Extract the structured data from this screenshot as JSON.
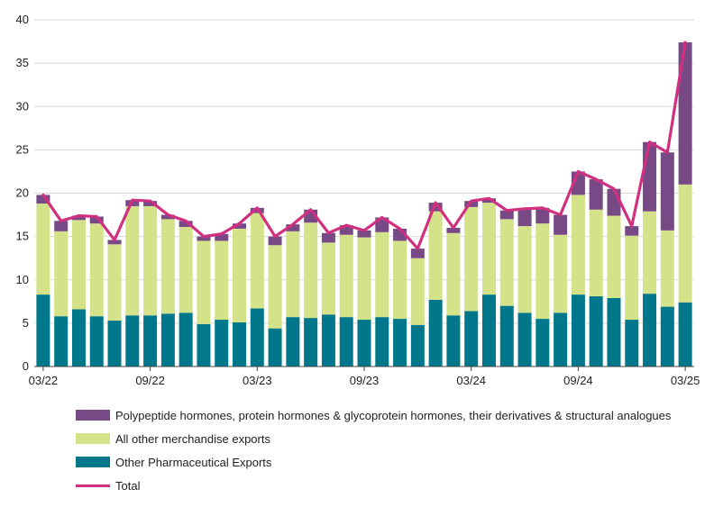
{
  "chart_data": {
    "type": "bar",
    "stacked": true,
    "title": "",
    "xlabel": "",
    "ylabel": "",
    "ylim": [
      0,
      40
    ],
    "yticks": [
      0,
      5,
      10,
      15,
      20,
      25,
      30,
      35,
      40
    ],
    "x_tick_labels": [
      {
        "index": 0,
        "label": "03/22"
      },
      {
        "index": 6,
        "label": "09/22"
      },
      {
        "index": 12,
        "label": "03/23"
      },
      {
        "index": 18,
        "label": "09/23"
      },
      {
        "index": 24,
        "label": "03/24"
      },
      {
        "index": 30,
        "label": "09/24"
      },
      {
        "index": 36,
        "label": "03/25"
      }
    ],
    "categories": [
      "03/22",
      "04/22",
      "05/22",
      "06/22",
      "07/22",
      "08/22",
      "09/22",
      "10/22",
      "11/22",
      "12/22",
      "01/23",
      "02/23",
      "03/23",
      "04/23",
      "05/23",
      "06/23",
      "07/23",
      "08/23",
      "09/23",
      "10/23",
      "11/23",
      "12/23",
      "01/24",
      "02/24",
      "03/24",
      "04/24",
      "05/24",
      "06/24",
      "07/24",
      "08/24",
      "09/24",
      "10/24",
      "11/24",
      "12/24",
      "01/25",
      "02/25",
      "03/25"
    ],
    "series": [
      {
        "name": "Other Pharmaceutical Exports",
        "color": "#00778B",
        "values": [
          8.3,
          5.8,
          6.6,
          5.8,
          5.3,
          5.9,
          5.9,
          6.1,
          6.2,
          4.9,
          5.4,
          5.1,
          6.7,
          4.4,
          5.7,
          5.6,
          6.0,
          5.7,
          5.4,
          5.7,
          5.5,
          4.8,
          7.7,
          5.9,
          6.4,
          8.3,
          7.0,
          6.2,
          5.5,
          6.2,
          8.3,
          8.1,
          7.9,
          5.4,
          8.4,
          6.9,
          7.4
        ]
      },
      {
        "name": "All other merchandise exports",
        "color": "#D4E28A",
        "values": [
          10.5,
          9.8,
          10.3,
          10.7,
          8.8,
          12.6,
          12.6,
          10.9,
          9.9,
          9.6,
          9.1,
          10.8,
          11.0,
          9.6,
          9.9,
          11.0,
          8.3,
          9.5,
          9.5,
          9.8,
          9.0,
          7.7,
          10.2,
          9.5,
          12.0,
          10.6,
          10.0,
          10.0,
          11.0,
          9.0,
          11.5,
          10.0,
          9.5,
          9.7,
          9.5,
          8.8,
          13.6
        ]
      },
      {
        "name": "Polypeptide hormones, protein hormones & glycoprotein hormones, their derivatives & structural analogues",
        "color": "#774A86",
        "values": [
          1.0,
          1.2,
          0.5,
          0.8,
          0.5,
          0.7,
          0.6,
          0.5,
          0.7,
          0.5,
          0.8,
          0.6,
          0.6,
          1.0,
          0.8,
          1.5,
          1.1,
          1.1,
          0.8,
          1.7,
          1.4,
          1.1,
          1.0,
          0.6,
          0.7,
          0.5,
          1.0,
          2.0,
          1.8,
          2.3,
          2.7,
          3.5,
          3.1,
          1.1,
          8.0,
          9.0,
          16.4
        ]
      },
      {
        "name": "Total",
        "color": "#D0307F",
        "type": "line",
        "values": [
          19.8,
          16.8,
          17.4,
          17.3,
          14.6,
          19.2,
          19.1,
          17.5,
          16.8,
          15.0,
          15.3,
          16.5,
          18.3,
          15.0,
          16.4,
          18.1,
          15.4,
          16.3,
          15.7,
          17.2,
          15.9,
          13.6,
          18.9,
          16.0,
          19.1,
          19.4,
          18.0,
          18.2,
          18.3,
          17.5,
          22.5,
          21.6,
          20.5,
          16.2,
          25.9,
          24.7,
          37.4
        ]
      }
    ],
    "legend_position": "bottom",
    "grid": "horizontal"
  },
  "legend": {
    "items": [
      {
        "label": "Polypeptide hormones, protein hormones & glycoprotein hormones, their derivatives & structural analogues",
        "color": "#774A86"
      },
      {
        "label": "All other merchandise exports",
        "color": "#D4E28A"
      },
      {
        "label": "Other Pharmaceutical Exports",
        "color": "#00778B"
      },
      {
        "label": "Total",
        "color": "#D0307F"
      }
    ]
  }
}
